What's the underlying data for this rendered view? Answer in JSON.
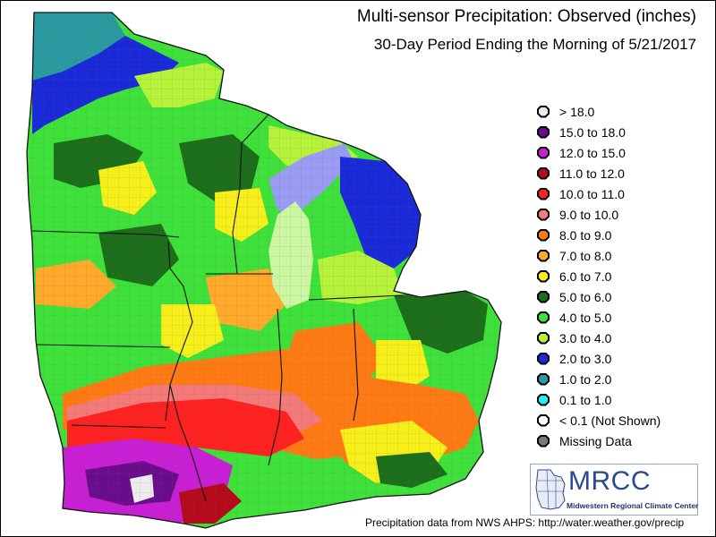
{
  "title": "Multi-sensor Precipitation:  Observed (inches)",
  "subtitle": "30-Day Period Ending the Morning of 5/21/2017",
  "legend": [
    {
      "label": "> 18.0",
      "color": "#ececec"
    },
    {
      "label": "15.0 to 18.0",
      "color": "#6a0c8c"
    },
    {
      "label": "12.0 to 15.0",
      "color": "#c81fd4"
    },
    {
      "label": "11.0 to 12.0",
      "color": "#b40a1c"
    },
    {
      "label": "10.0 to 11.0",
      "color": "#ff2020"
    },
    {
      "label": "9.0 to 10.0",
      "color": "#f47a7a"
    },
    {
      "label": "8.0 to 9.0",
      "color": "#ff7a12"
    },
    {
      "label": "7.0 to 8.0",
      "color": "#ffaa2a"
    },
    {
      "label": "6.0 to 7.0",
      "color": "#f7ef1a"
    },
    {
      "label": "5.0 to 6.0",
      "color": "#1c6e1a"
    },
    {
      "label": "4.0 to 5.0",
      "color": "#3ee03a"
    },
    {
      "label": "3.0 to 4.0",
      "color": "#b6f23a"
    },
    {
      "label": "2.0 to 3.0",
      "color": "#1a2ad8"
    },
    {
      "label": "1.0 to 2.0",
      "color": "#2a9aa0"
    },
    {
      "label": "0.1 to 1.0",
      "color": "#22f0f0"
    },
    {
      "label": "< 0.1 (Not Shown)",
      "color": "#ffffff"
    },
    {
      "label": "Missing Data",
      "color": "#7a7a7a"
    }
  ],
  "logo": {
    "name": "MRCC",
    "full_name": "Midwestern Regional Climate Center"
  },
  "footer": "Precipitation data from NWS AHPS: http://water.weather.gov/precip"
}
